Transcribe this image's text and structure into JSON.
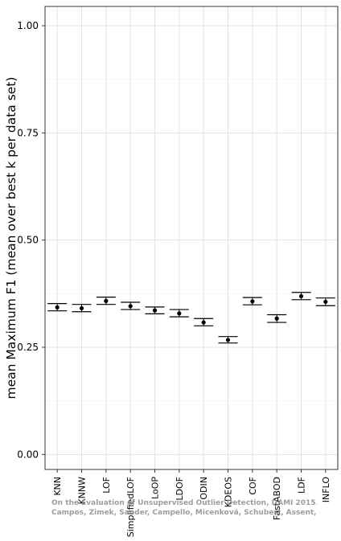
{
  "chart_data": {
    "type": "scatter",
    "ylabel": "mean Maximum F1 (mean over best k per data set)",
    "xlabel": "",
    "ylim": [
      -0.035,
      1.045
    ],
    "y_ticks": [
      0.0,
      0.25,
      0.5,
      0.75,
      1.0
    ],
    "y_tick_labels": [
      "0.00",
      "0.25",
      "0.50",
      "0.75",
      "1.00"
    ],
    "grid": true,
    "categories": [
      "KNN",
      "KNNW",
      "LOF",
      "SimplifiedLOF",
      "LoOP",
      "LDOF",
      "ODIN",
      "KDEOS",
      "COF",
      "FastABOD",
      "LDF",
      "INFLO"
    ],
    "series": [
      {
        "mean": [
          0.343,
          0.341,
          0.358,
          0.346,
          0.336,
          0.329,
          0.308,
          0.267,
          0.357,
          0.317,
          0.369,
          0.356
        ],
        "lower": [
          0.335,
          0.333,
          0.35,
          0.338,
          0.328,
          0.321,
          0.3,
          0.26,
          0.349,
          0.308,
          0.361,
          0.347
        ],
        "upper": [
          0.352,
          0.35,
          0.367,
          0.355,
          0.344,
          0.338,
          0.317,
          0.275,
          0.366,
          0.326,
          0.378,
          0.365
        ]
      }
    ]
  },
  "watermark": {
    "line1": "On the Evaluation of Unsupervised Outlier Detection, DAMI 2015.",
    "line2": "Campos, Zimek, Sander, Campello, Micenková, Schubert, Assent, Houle"
  }
}
